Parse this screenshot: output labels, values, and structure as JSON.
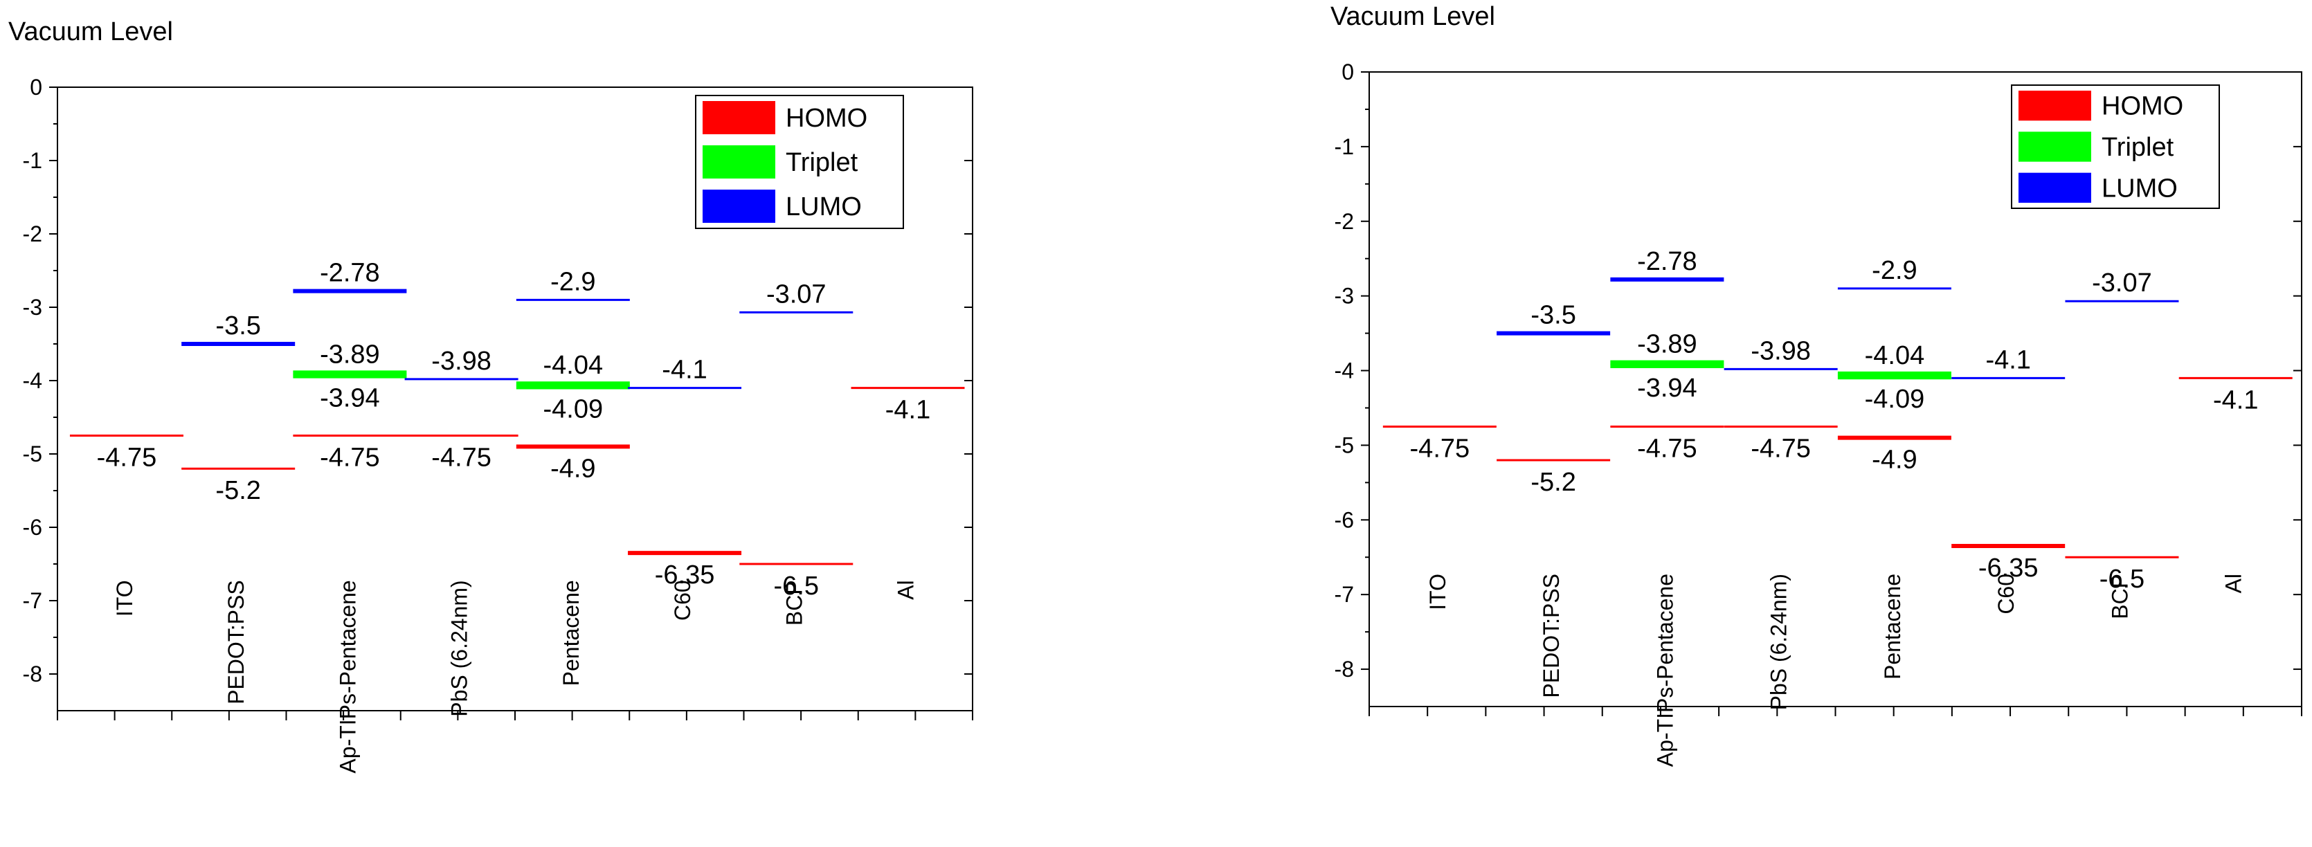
{
  "chart_data": [
    {
      "type": "energy_level_diagram",
      "ylabel": "Vacuum Level",
      "ylim": [
        -8.5,
        0
      ],
      "y_ticks": [
        0,
        -1,
        -2,
        -3,
        -4,
        -5,
        -6,
        -7,
        -8
      ],
      "y_tick_labels": [
        "0",
        "-1",
        "-2",
        "-3",
        "-4",
        "-5",
        "-6",
        "-7",
        "-8"
      ],
      "categories": [
        "ITO",
        "PEDOT:PSS",
        "Ap-TIPs-Pentacene",
        "PbS (6.24nm)",
        "Pentacene",
        "C60",
        "BCP",
        "Al"
      ],
      "grid": false,
      "legend_position": "top-right",
      "legend": [
        {
          "name": "HOMO",
          "color": "#ff0000"
        },
        {
          "name": "Triplet",
          "color": "#00ff00"
        },
        {
          "name": "LUMO",
          "color": "#0000ff"
        }
      ],
      "levels": [
        {
          "category": "ITO",
          "value": -4.75,
          "color": "#ff0000",
          "label": "-4.75",
          "thick": false
        },
        {
          "category": "PEDOT:PSS",
          "value": -3.5,
          "color": "#0000ff",
          "label": "-3.5",
          "thick": true
        },
        {
          "category": "PEDOT:PSS",
          "value": -5.2,
          "color": "#ff0000",
          "label": "-5.2",
          "thick": false
        },
        {
          "category": "Ap-TIPs-Pentacene",
          "value": -2.78,
          "color": "#0000ff",
          "label": "-2.78",
          "thick": true
        },
        {
          "category": "Ap-TIPs-Pentacene",
          "value": -3.89,
          "color": "#00ff00",
          "label": "-3.89",
          "thick": true
        },
        {
          "category": "Ap-TIPs-Pentacene",
          "value": -3.94,
          "color": "#00ff00",
          "label": "-3.94",
          "thick": true
        },
        {
          "category": "Ap-TIPs-Pentacene",
          "value": -4.75,
          "color": "#ff0000",
          "label": "-4.75",
          "thick": false
        },
        {
          "category": "PbS (6.24nm)",
          "value": -3.98,
          "color": "#0000ff",
          "label": "-3.98",
          "thick": false
        },
        {
          "category": "PbS (6.24nm)",
          "value": -4.75,
          "color": "#ff0000",
          "label": "-4.75",
          "thick": false
        },
        {
          "category": "Pentacene",
          "value": -2.9,
          "color": "#0000ff",
          "label": "-2.9",
          "thick": false
        },
        {
          "category": "Pentacene",
          "value": -4.04,
          "color": "#00ff00",
          "label": "-4.04",
          "thick": true
        },
        {
          "category": "Pentacene",
          "value": -4.09,
          "color": "#00ff00",
          "label": "-4.09",
          "thick": true
        },
        {
          "category": "Pentacene",
          "value": -4.9,
          "color": "#ff0000",
          "label": "-4.9",
          "thick": true
        },
        {
          "category": "C60",
          "value": -4.1,
          "color": "#0000ff",
          "label": "-4.1",
          "thick": false
        },
        {
          "category": "C60",
          "value": -6.35,
          "color": "#ff0000",
          "label": "-6.35",
          "thick": true
        },
        {
          "category": "BCP",
          "value": -3.07,
          "color": "#0000ff",
          "label": "-3.07",
          "thick": false
        },
        {
          "category": "BCP",
          "value": -6.5,
          "color": "#ff0000",
          "label": "-6.5",
          "thick": false
        },
        {
          "category": "Al",
          "value": -4.1,
          "color": "#ff0000",
          "label": "-4.1",
          "thick": false
        }
      ]
    },
    {
      "type": "energy_level_diagram",
      "ylabel": "Vacuum Level",
      "ylim": [
        -8.5,
        0
      ],
      "y_ticks": [
        0,
        -1,
        -2,
        -3,
        -4,
        -5,
        -6,
        -7,
        -8
      ],
      "y_tick_labels": [
        "0",
        "-1",
        "-2",
        "-3",
        "-4",
        "-5",
        "-6",
        "-7",
        "-8"
      ],
      "categories": [
        "ITO",
        "PEDOT:PSS",
        "Ap-TIPs-Pentacene",
        "PbS (6.24nm)",
        "Pentacene",
        "C60",
        "BCP",
        "Al"
      ],
      "grid": false,
      "legend_position": "top-right",
      "legend": [
        {
          "name": "HOMO",
          "color": "#ff0000"
        },
        {
          "name": "Triplet",
          "color": "#00ff00"
        },
        {
          "name": "LUMO",
          "color": "#0000ff"
        }
      ],
      "levels": [
        {
          "category": "ITO",
          "value": -4.75,
          "color": "#ff0000",
          "label": "-4.75",
          "thick": false
        },
        {
          "category": "PEDOT:PSS",
          "value": -3.5,
          "color": "#0000ff",
          "label": "-3.5",
          "thick": true
        },
        {
          "category": "PEDOT:PSS",
          "value": -5.2,
          "color": "#ff0000",
          "label": "-5.2",
          "thick": false
        },
        {
          "category": "Ap-TIPs-Pentacene",
          "value": -2.78,
          "color": "#0000ff",
          "label": "-2.78",
          "thick": true
        },
        {
          "category": "Ap-TIPs-Pentacene",
          "value": -3.89,
          "color": "#00ff00",
          "label": "-3.89",
          "thick": true
        },
        {
          "category": "Ap-TIPs-Pentacene",
          "value": -3.94,
          "color": "#00ff00",
          "label": "-3.94",
          "thick": true
        },
        {
          "category": "Ap-TIPs-Pentacene",
          "value": -4.75,
          "color": "#ff0000",
          "label": "-4.75",
          "thick": false
        },
        {
          "category": "PbS (6.24nm)",
          "value": -3.98,
          "color": "#0000ff",
          "label": "-3.98",
          "thick": false
        },
        {
          "category": "PbS (6.24nm)",
          "value": -4.75,
          "color": "#ff0000",
          "label": "-4.75",
          "thick": false
        },
        {
          "category": "Pentacene",
          "value": -2.9,
          "color": "#0000ff",
          "label": "-2.9",
          "thick": false
        },
        {
          "category": "Pentacene",
          "value": -4.04,
          "color": "#00ff00",
          "label": "-4.04",
          "thick": true
        },
        {
          "category": "Pentacene",
          "value": -4.09,
          "color": "#00ff00",
          "label": "-4.09",
          "thick": true
        },
        {
          "category": "Pentacene",
          "value": -4.9,
          "color": "#ff0000",
          "label": "-4.9",
          "thick": true
        },
        {
          "category": "C60",
          "value": -4.1,
          "color": "#0000ff",
          "label": "-4.1",
          "thick": false
        },
        {
          "category": "C60",
          "value": -6.35,
          "color": "#ff0000",
          "label": "-6.35",
          "thick": true
        },
        {
          "category": "BCP",
          "value": -3.07,
          "color": "#0000ff",
          "label": "-3.07",
          "thick": false
        },
        {
          "category": "BCP",
          "value": -6.5,
          "color": "#ff0000",
          "label": "-6.5",
          "thick": false
        },
        {
          "category": "Al",
          "value": -4.1,
          "color": "#ff0000",
          "label": "-4.1",
          "thick": false
        }
      ]
    }
  ]
}
